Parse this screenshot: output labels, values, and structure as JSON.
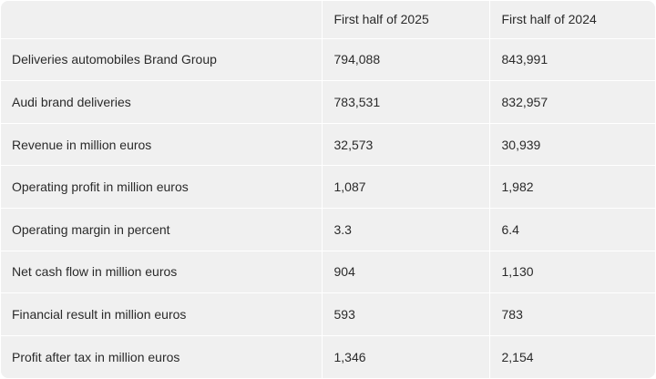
{
  "table": {
    "headers": [
      "",
      "First half of 2025",
      "First half of 2024"
    ],
    "rows": [
      {
        "metric": "Deliveries automobiles Brand Group",
        "h1_2025": "794,088",
        "h1_2024": "843,991"
      },
      {
        "metric": "Audi brand deliveries",
        "h1_2025": "783,531",
        "h1_2024": "832,957"
      },
      {
        "metric": "Revenue in million euros",
        "h1_2025": "32,573",
        "h1_2024": "30,939"
      },
      {
        "metric": "Operating profit in million euros",
        "h1_2025": "1,087",
        "h1_2024": "1,982"
      },
      {
        "metric": "Operating margin in percent",
        "h1_2025": "3.3",
        "h1_2024": "6.4"
      },
      {
        "metric": "Net cash flow in million euros",
        "h1_2025": "904",
        "h1_2024": "1,130"
      },
      {
        "metric": "Financial result in million euros",
        "h1_2025": "593",
        "h1_2024": "783"
      },
      {
        "metric": "Profit after tax in million euros",
        "h1_2025": "1,346",
        "h1_2024": "2,154"
      }
    ]
  }
}
